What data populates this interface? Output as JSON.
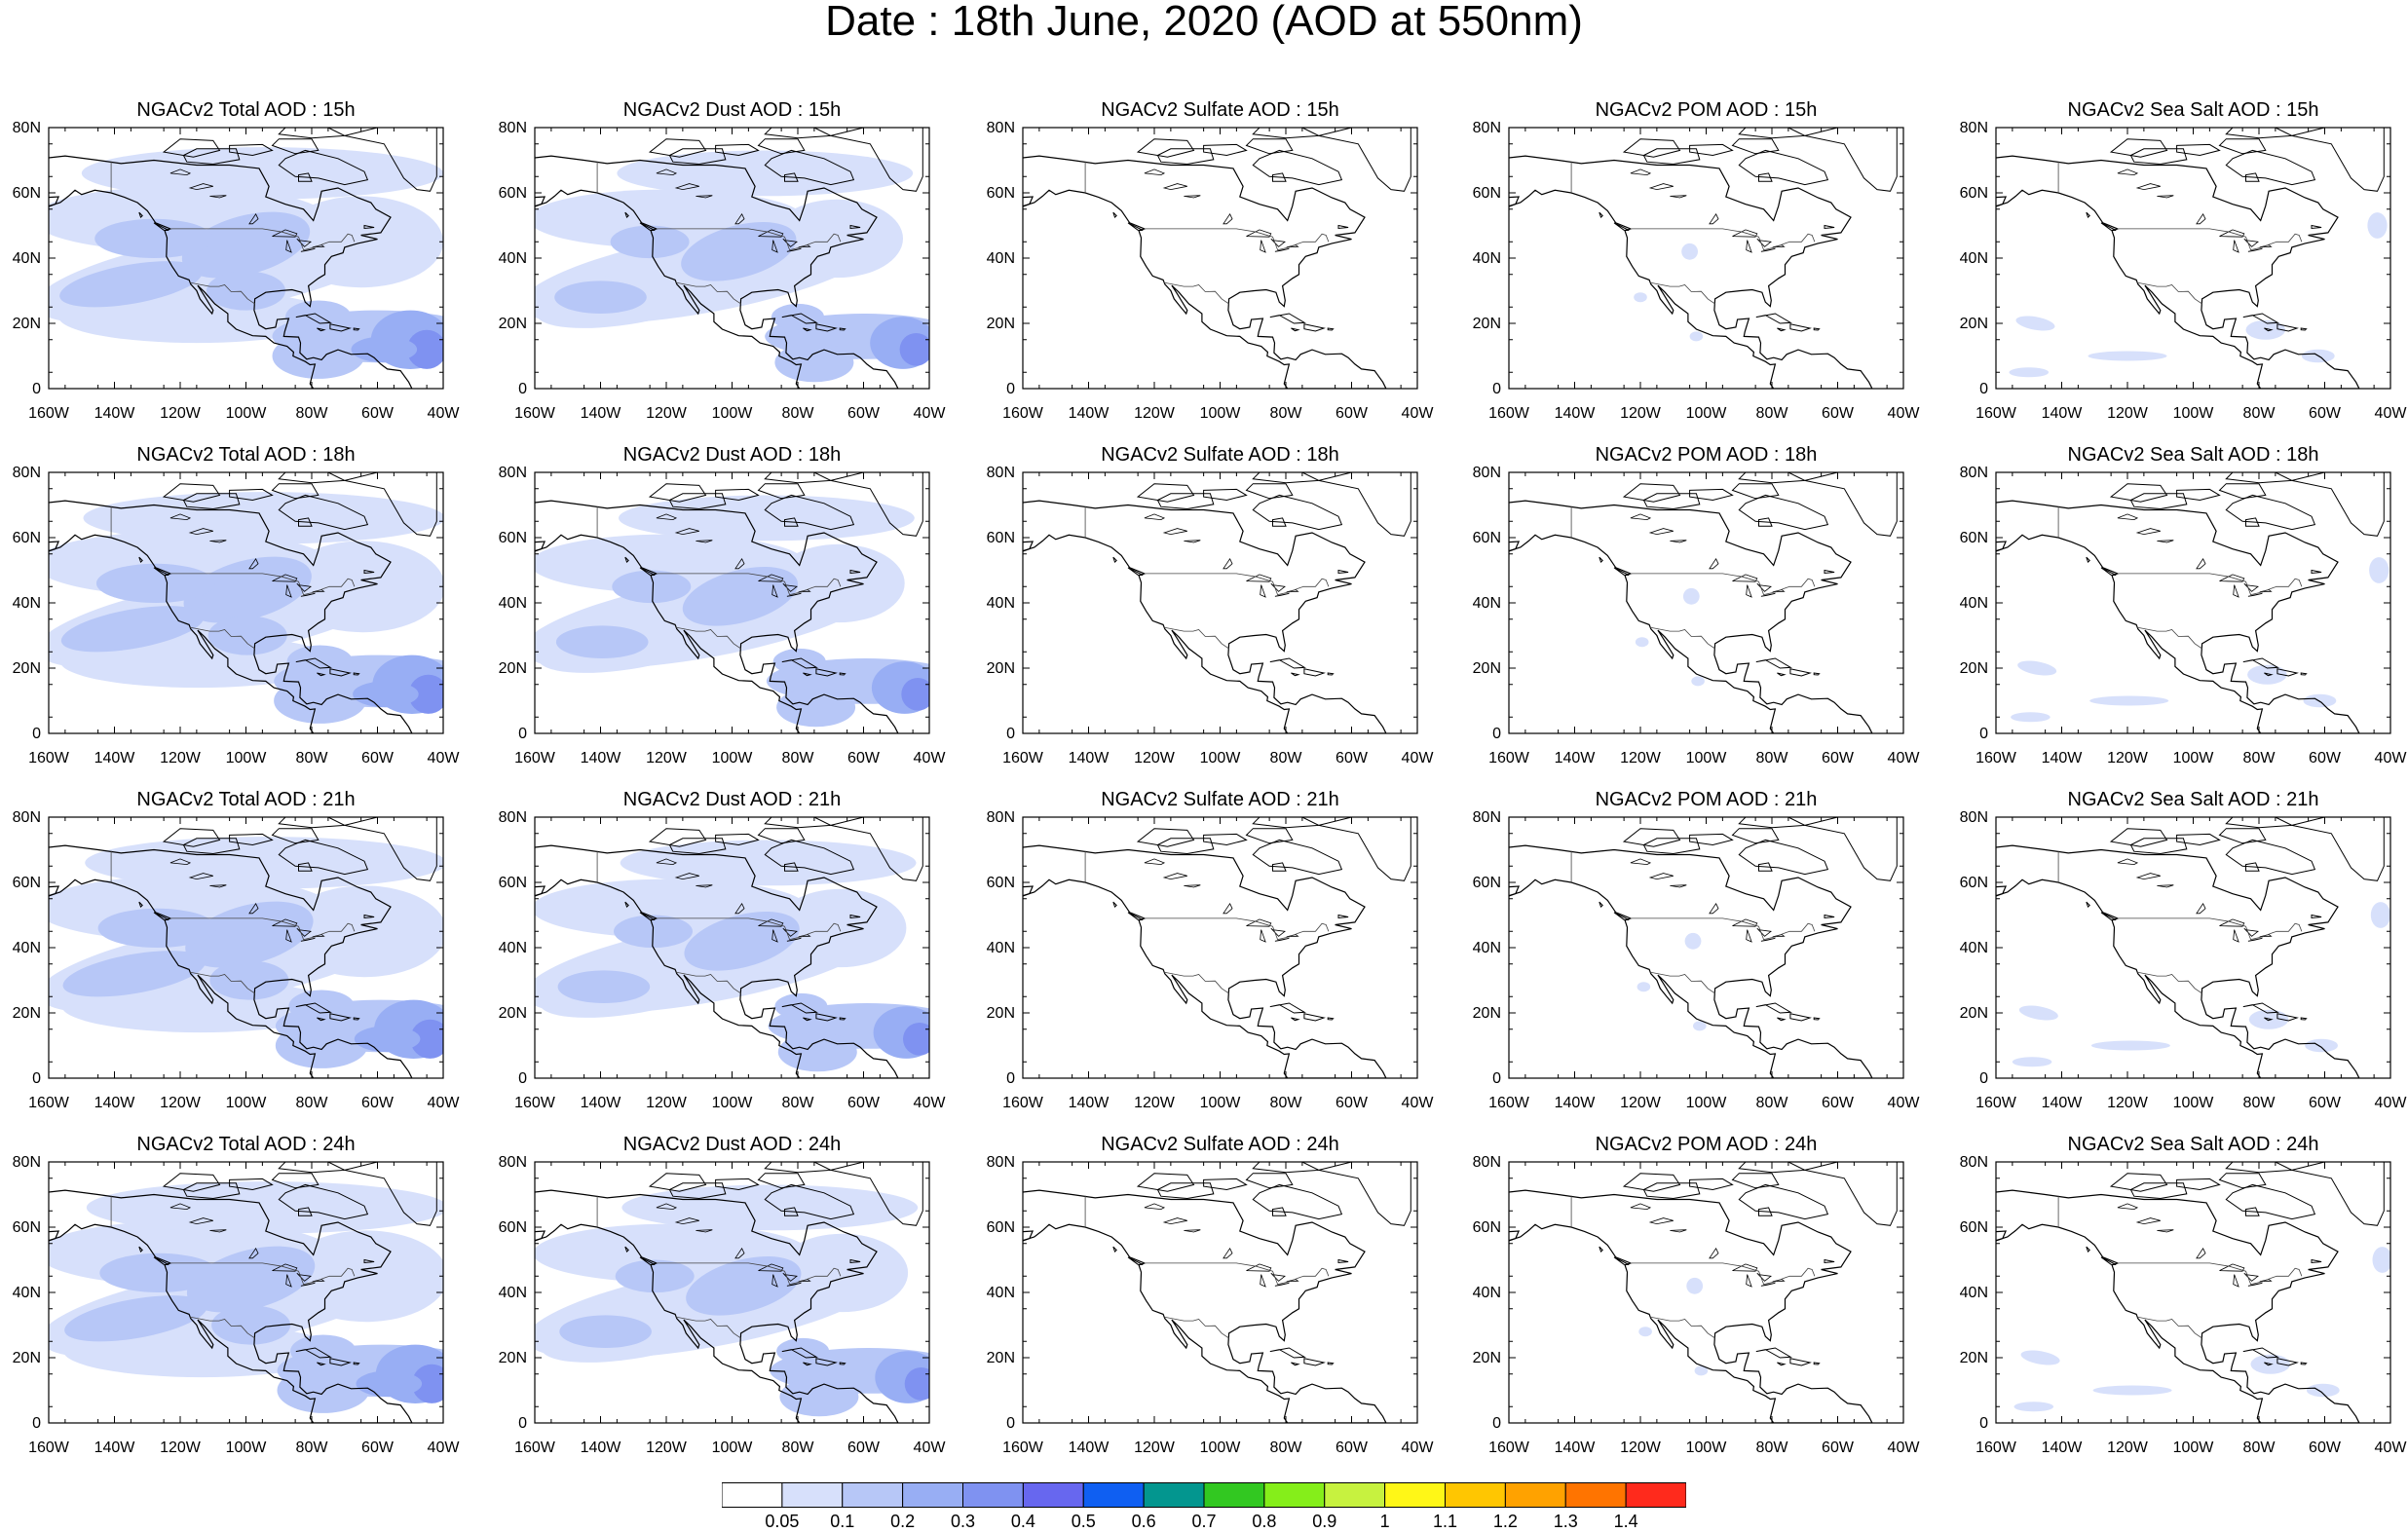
{
  "title": "Date : 18th June, 2020 (AOD at 550nm)",
  "colors": {
    "coastline": "#000000",
    "aod_levels": [
      "#ffffff",
      "#d7e0fb",
      "#b7c7f7",
      "#98aef4",
      "#7f92f1",
      "#6767ef",
      "#0f5ff2",
      "#03968f",
      "#32c821",
      "#85ee1a",
      "#c7f23f",
      "#fff717",
      "#ffc601",
      "#ffa200",
      "#ff7400",
      "#ff2a1c"
    ]
  },
  "axes": {
    "lon_ticks": [
      "160W",
      "140W",
      "120W",
      "100W",
      "80W",
      "60W",
      "40W"
    ],
    "lat_ticks": [
      "80N",
      "60N",
      "40N",
      "20N",
      "0"
    ]
  },
  "panels": [
    {
      "title": "NGACv2 Total AOD : 15h",
      "species": "total",
      "hour": 15
    },
    {
      "title": "NGACv2 Dust AOD : 15h",
      "species": "dust",
      "hour": 15
    },
    {
      "title": "NGACv2 Sulfate AOD : 15h",
      "species": "sulfate",
      "hour": 15
    },
    {
      "title": "NGACv2 POM AOD : 15h",
      "species": "pom",
      "hour": 15
    },
    {
      "title": "NGACv2 Sea Salt AOD : 15h",
      "species": "seasalt",
      "hour": 15
    },
    {
      "title": "NGACv2 Total AOD : 18h",
      "species": "total",
      "hour": 18
    },
    {
      "title": "NGACv2 Dust AOD : 18h",
      "species": "dust",
      "hour": 18
    },
    {
      "title": "NGACv2 Sulfate AOD : 18h",
      "species": "sulfate",
      "hour": 18
    },
    {
      "title": "NGACv2 POM AOD : 18h",
      "species": "pom",
      "hour": 18
    },
    {
      "title": "NGACv2 Sea Salt AOD : 18h",
      "species": "seasalt",
      "hour": 18
    },
    {
      "title": "NGACv2 Total AOD : 21h",
      "species": "total",
      "hour": 21
    },
    {
      "title": "NGACv2 Dust AOD : 21h",
      "species": "dust",
      "hour": 21
    },
    {
      "title": "NGACv2 Sulfate AOD : 21h",
      "species": "sulfate",
      "hour": 21
    },
    {
      "title": "NGACv2 POM AOD : 21h",
      "species": "pom",
      "hour": 21
    },
    {
      "title": "NGACv2 Sea Salt AOD : 21h",
      "species": "seasalt",
      "hour": 21
    },
    {
      "title": "NGACv2 Total AOD : 24h",
      "species": "total",
      "hour": 24
    },
    {
      "title": "NGACv2 Dust AOD : 24h",
      "species": "dust",
      "hour": 24
    },
    {
      "title": "NGACv2 Sulfate AOD : 24h",
      "species": "sulfate",
      "hour": 24
    },
    {
      "title": "NGACv2 POM AOD : 24h",
      "species": "pom",
      "hour": 24
    },
    {
      "title": "NGACv2 Sea Salt  AOD : 24h",
      "species": "seasalt",
      "hour": 24
    }
  ],
  "colorbar": {
    "labels": [
      "0.05",
      "0.1",
      "0.2",
      "0.3",
      "0.4",
      "0.5",
      "0.6",
      "0.7",
      "0.8",
      "0.9",
      "1",
      "1.1",
      "1.2",
      "1.3",
      "1.4"
    ]
  }
}
